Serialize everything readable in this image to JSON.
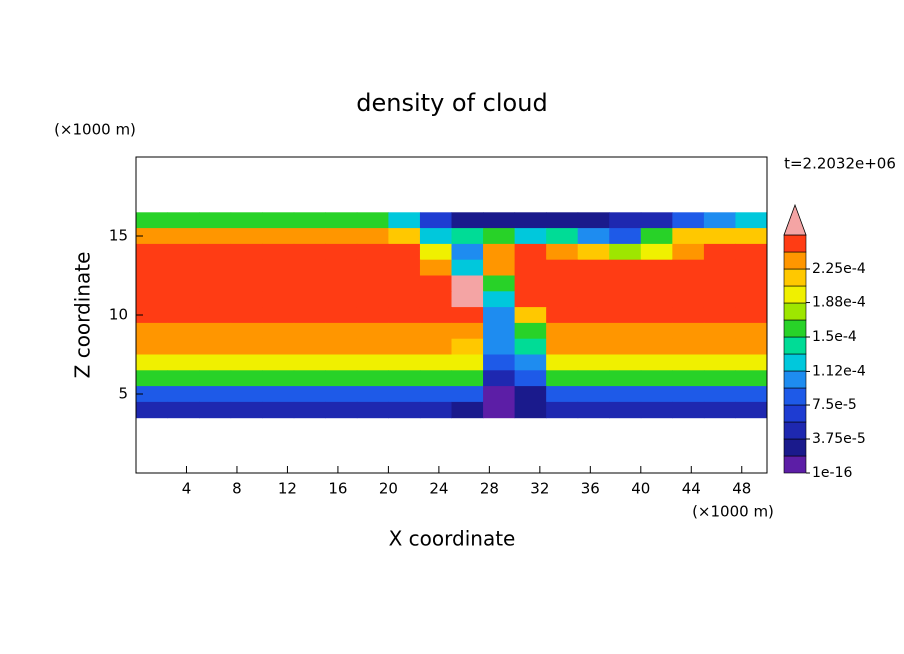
{
  "chart_data": {
    "type": "contour",
    "title": "density of cloud",
    "xlabel": "X coordinate",
    "ylabel": "Z coordinate",
    "xunit": "(×1000 m)",
    "yunit": "(×1000 m)",
    "time_label": "t=2.2032e+06",
    "xlim": [
      0,
      50
    ],
    "ylim": [
      0,
      20
    ],
    "xticks": [
      4,
      8,
      12,
      16,
      20,
      24,
      28,
      32,
      36,
      40,
      44,
      48
    ],
    "yticks": [
      5,
      10,
      15
    ],
    "x_edges": [
      0,
      2.5,
      5,
      7.5,
      10,
      12.5,
      15,
      17.5,
      20,
      22.5,
      25,
      27.5,
      30,
      32.5,
      35,
      37.5,
      40,
      42.5,
      45,
      47.5,
      50
    ],
    "z_edges": [
      16.5,
      15.5,
      14.5,
      13.5,
      12.5,
      11.5,
      10.5,
      9.5,
      8.5,
      7.5,
      6.5,
      5.5,
      4.5,
      3.5
    ],
    "levels": [
      1e-16,
      1.875e-05,
      3.75e-05,
      5.625e-05,
      7.5e-05,
      9.375e-05,
      0.0001125,
      0.00013125,
      0.00015,
      0.00016875,
      0.0001875,
      0.00020625,
      0.000225,
      0.00024375,
      0.0002625
    ],
    "colors": [
      "#5c1ea6",
      "#1a1a8c",
      "#1e28b0",
      "#1e3cd2",
      "#1e5ae8",
      "#1e8cf0",
      "#00c8dc",
      "#00dc96",
      "#28d228",
      "#9ee600",
      "#f0f000",
      "#ffc800",
      "#ff9600",
      "#ff3c14"
    ],
    "extend_color": "#f4a4a4",
    "colorbar_ticks": [
      {
        "value": 1e-16,
        "label": "1e-16"
      },
      {
        "value": 3.75e-05,
        "label": "3.75e-5"
      },
      {
        "value": 7.5e-05,
        "label": "7.5e-5"
      },
      {
        "value": 0.000112,
        "label": "1.12e-4"
      },
      {
        "value": 0.00015,
        "label": "1.5e-4"
      },
      {
        "value": 0.000188,
        "label": "1.88e-4"
      },
      {
        "value": 0.000225,
        "label": "2.25e-4"
      }
    ],
    "z": [
      [
        0.00016,
        0.00016,
        0.00016,
        0.00016,
        0.00016,
        0.00016,
        0.00016,
        0.00015,
        0.00012,
        6e-05,
        3e-05,
        2e-05,
        2e-05,
        2e-05,
        3e-05,
        4e-05,
        5e-05,
        8e-05,
        0.0001,
        0.00012
      ],
      [
        0.00023,
        0.00023,
        0.00023,
        0.00023,
        0.00023,
        0.00023,
        0.00023,
        0.00023,
        0.00022,
        0.00012,
        0.00014,
        0.00015,
        0.00013,
        0.00014,
        0.0001,
        8e-05,
        0.00015,
        0.00021,
        0.00022,
        0.00022
      ],
      [
        0.000245,
        0.000245,
        0.000245,
        0.000245,
        0.000245,
        0.000245,
        0.000245,
        0.000245,
        0.000245,
        0.0002,
        0.0001,
        0.00023,
        0.000245,
        0.00024,
        0.00021,
        0.00018,
        0.0002,
        0.00024,
        0.000245,
        0.000245
      ],
      [
        0.00025,
        0.00025,
        0.00025,
        0.00025,
        0.00025,
        0.00025,
        0.00025,
        0.00025,
        0.00025,
        0.00024,
        0.00013,
        0.00024,
        0.00025,
        0.00025,
        0.00025,
        0.00025,
        0.00025,
        0.00025,
        0.00025,
        0.00025
      ],
      [
        0.00025,
        0.00025,
        0.00025,
        0.00025,
        0.00025,
        0.00025,
        0.00025,
        0.00025,
        0.00025,
        0.00025,
        0.00027,
        0.00015,
        0.00025,
        0.00025,
        0.00025,
        0.00025,
        0.00025,
        0.00025,
        0.00025,
        0.00025
      ],
      [
        0.00025,
        0.00025,
        0.00025,
        0.00025,
        0.00025,
        0.00025,
        0.00025,
        0.00025,
        0.00025,
        0.00025,
        0.00027,
        0.00013,
        0.00025,
        0.00025,
        0.00025,
        0.00025,
        0.00025,
        0.00025,
        0.00025,
        0.00025
      ],
      [
        0.00025,
        0.00025,
        0.00025,
        0.00025,
        0.00025,
        0.00025,
        0.00025,
        0.00025,
        0.00025,
        0.00025,
        0.00026,
        0.0001,
        0.00022,
        0.00025,
        0.00025,
        0.00025,
        0.00025,
        0.00025,
        0.00025,
        0.00025
      ],
      [
        0.00024,
        0.00024,
        0.00024,
        0.00024,
        0.00024,
        0.00024,
        0.00024,
        0.00024,
        0.00024,
        0.00024,
        0.00024,
        0.0001,
        0.00016,
        0.00024,
        0.00024,
        0.00024,
        0.00024,
        0.00024,
        0.00024,
        0.00024
      ],
      [
        0.000225,
        0.000225,
        0.000225,
        0.000225,
        0.000225,
        0.000225,
        0.000225,
        0.000225,
        0.000225,
        0.000225,
        0.00022,
        0.0001,
        0.00014,
        0.000225,
        0.000225,
        0.000225,
        0.000225,
        0.000225,
        0.000225,
        0.000225
      ],
      [
        0.000195,
        0.000195,
        0.000195,
        0.000195,
        0.000195,
        0.000195,
        0.000195,
        0.000195,
        0.000195,
        0.000195,
        0.000195,
        9e-05,
        0.00011,
        0.000195,
        0.000195,
        0.000195,
        0.000195,
        0.000195,
        0.000195,
        0.000195
      ],
      [
        0.000155,
        0.000155,
        0.000155,
        0.000155,
        0.000155,
        0.000155,
        0.000155,
        0.000155,
        0.000155,
        0.000155,
        0.000155,
        5e-05,
        8e-05,
        0.000155,
        0.000155,
        0.000155,
        0.000155,
        0.000155,
        0.000155,
        0.000155
      ],
      [
        9e-05,
        9e-05,
        9e-05,
        9e-05,
        9e-05,
        9e-05,
        9e-05,
        9e-05,
        9e-05,
        9e-05,
        9e-05,
        1e-05,
        3e-05,
        9e-05,
        9e-05,
        9e-05,
        9e-05,
        9e-05,
        9e-05,
        9e-05
      ],
      [
        4e-05,
        4e-05,
        4e-05,
        4e-05,
        4e-05,
        4e-05,
        4e-05,
        4e-05,
        4e-05,
        4e-05,
        3e-05,
        1e-05,
        2e-05,
        4e-05,
        4e-05,
        4e-05,
        4e-05,
        4e-05,
        4e-05,
        4e-05
      ]
    ]
  }
}
